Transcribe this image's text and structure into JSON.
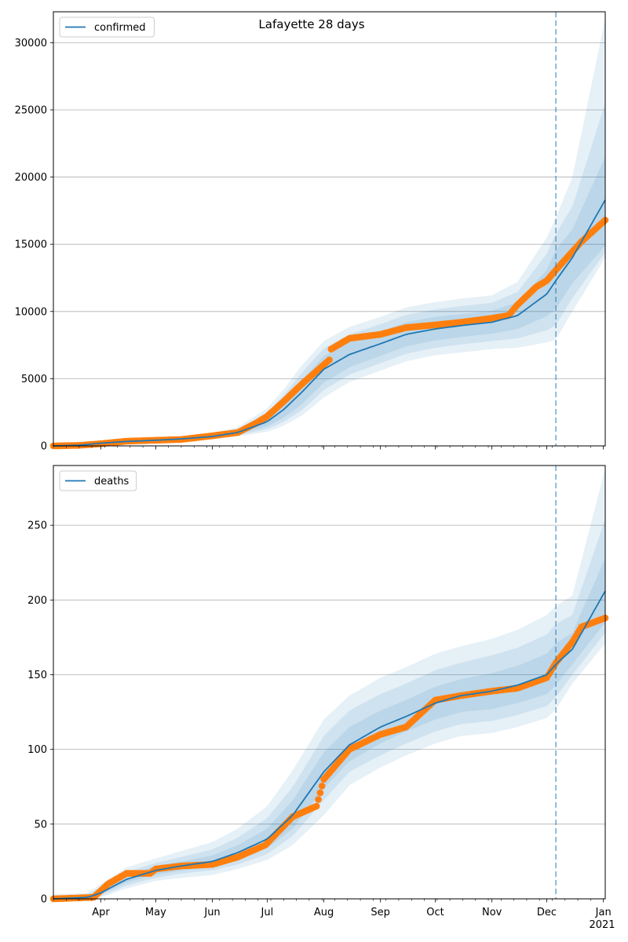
{
  "figure": {
    "suptitle": "Lafayette 28 days"
  },
  "colors": {
    "model_line": "#1f77b4",
    "observed_points": "#ff7f0e",
    "band": "#1f77b4",
    "cutoff_line": "#1f77b4",
    "grid": "#b0b0b0"
  },
  "x_axis": {
    "month_ticks": [
      {
        "date": "2020-04-01",
        "label": "Apr"
      },
      {
        "date": "2020-05-01",
        "label": "May"
      },
      {
        "date": "2020-06-01",
        "label": "Jun"
      },
      {
        "date": "2020-07-01",
        "label": "Jul"
      },
      {
        "date": "2020-08-01",
        "label": "Aug"
      },
      {
        "date": "2020-09-01",
        "label": "Sep"
      },
      {
        "date": "2020-10-01",
        "label": "Oct"
      },
      {
        "date": "2020-11-01",
        "label": "Nov"
      },
      {
        "date": "2020-12-01",
        "label": "Dec"
      },
      {
        "date": "2021-01-01",
        "label": "Jan"
      }
    ],
    "year_label": "2021",
    "range": [
      "2020-03-06",
      "2021-01-02"
    ]
  },
  "chart_data": [
    {
      "type": "line",
      "legend": "confirmed",
      "legend_position": "top-left",
      "grid": "y",
      "ylim": [
        0,
        32300
      ],
      "yticks": [
        "0",
        "5000",
        "10000",
        "15000",
        "20000",
        "25000",
        "30000"
      ],
      "ytick_values": [
        0,
        5000,
        10000,
        15000,
        20000,
        25000,
        30000
      ],
      "forecast_start": "2020-12-06",
      "model": {
        "name": "confirmed",
        "dates": [
          "2020-03-06",
          "2020-03-20",
          "2020-04-01",
          "2020-04-15",
          "2020-05-01",
          "2020-05-15",
          "2020-06-01",
          "2020-06-15",
          "2020-07-01",
          "2020-07-10",
          "2020-07-20",
          "2020-08-01",
          "2020-08-15",
          "2020-09-01",
          "2020-09-15",
          "2020-10-01",
          "2020-10-15",
          "2020-11-01",
          "2020-11-15",
          "2020-12-01",
          "2020-12-06",
          "2020-12-15",
          "2021-01-02"
        ],
        "values": [
          0,
          50,
          200,
          330,
          420,
          520,
          700,
          1000,
          1800,
          2700,
          4000,
          5700,
          6800,
          7600,
          8300,
          8700,
          8950,
          9200,
          9700,
          11300,
          12300,
          14000,
          18300
        ],
        "bands": [
          {
            "lower": [
              0,
              40,
              170,
              290,
              380,
              470,
              630,
              880,
              1450,
              2100,
              3100,
              4700,
              5850,
              6700,
              7400,
              7850,
              8100,
              8350,
              8700,
              9650,
              10200,
              12100,
              14900
            ],
            "upper": [
              0,
              60,
              230,
              370,
              460,
              570,
              780,
              1120,
              2200,
              3300,
              4900,
              6700,
              7750,
              8500,
              9200,
              9600,
              9800,
              10050,
              10700,
              13100,
              14600,
              16100,
              21500
            ]
          },
          {
            "lower": [
              0,
              30,
              150,
              260,
              350,
              430,
              580,
              790,
              1250,
              1800,
              2650,
              4150,
              5300,
              6150,
              6850,
              7300,
              7550,
              7800,
              8000,
              8600,
              9000,
              11000,
              14400
            ],
            "upper": [
              0,
              70,
              260,
              410,
              500,
              620,
              850,
              1250,
              2500,
              3750,
              5450,
              7250,
              8300,
              9050,
              9750,
              10150,
              10400,
              10650,
              11450,
              14300,
              15800,
              17800,
              25500
            ]
          },
          {
            "lower": [
              0,
              20,
              130,
              230,
              320,
              390,
              520,
              700,
              1050,
              1500,
              2250,
              3600,
              4750,
              5600,
              6300,
              6750,
              6950,
              7200,
              7300,
              7700,
              7900,
              10000,
              14000
            ],
            "upper": [
              0,
              80,
              290,
              450,
              540,
              670,
              920,
              1400,
              2800,
              4200,
              6000,
              7800,
              8850,
              9600,
              10300,
              10700,
              10950,
              11200,
              12200,
              15500,
              17000,
              20000,
              31800
            ]
          }
        ]
      },
      "observed": {
        "dates": [
          "2020-03-06",
          "2020-03-20",
          "2020-03-31",
          "2020-04-15",
          "2020-05-01",
          "2020-05-15",
          "2020-06-01",
          "2020-06-15",
          "2020-06-25",
          "2020-07-01",
          "2020-07-10",
          "2020-07-20",
          "2020-07-30",
          "2020-08-04",
          "2020-08-05",
          "2020-08-15",
          "2020-09-01",
          "2020-09-15",
          "2020-10-01",
          "2020-10-15",
          "2020-11-01",
          "2020-11-10",
          "2020-11-15",
          "2020-11-25",
          "2020-12-01",
          "2020-12-10",
          "2020-12-20",
          "2021-01-02"
        ],
        "values": [
          0,
          40,
          150,
          350,
          420,
          480,
          750,
          1000,
          1700,
          2200,
          3300,
          4600,
          5800,
          6400,
          7200,
          8000,
          8300,
          8800,
          9000,
          9200,
          9500,
          9700,
          10500,
          11800,
          12300,
          13700,
          15200,
          16800
        ]
      }
    },
    {
      "type": "line",
      "legend": "deaths",
      "legend_position": "top-left",
      "grid": "y",
      "ylim": [
        0,
        290
      ],
      "yticks": [
        "0",
        "50",
        "100",
        "150",
        "200",
        "250"
      ],
      "ytick_values": [
        0,
        50,
        100,
        150,
        200,
        250
      ],
      "forecast_start": "2020-12-06",
      "model": {
        "name": "deaths",
        "dates": [
          "2020-03-06",
          "2020-03-25",
          "2020-04-01",
          "2020-04-15",
          "2020-05-01",
          "2020-05-15",
          "2020-06-01",
          "2020-06-15",
          "2020-07-01",
          "2020-07-15",
          "2020-08-01",
          "2020-08-15",
          "2020-09-01",
          "2020-09-15",
          "2020-10-01",
          "2020-10-15",
          "2020-11-01",
          "2020-11-15",
          "2020-12-01",
          "2020-12-06",
          "2020-12-15",
          "2021-01-02"
        ],
        "values": [
          0,
          1,
          4,
          13,
          19,
          22,
          25,
          31,
          40,
          56,
          85,
          103,
          115,
          122,
          131,
          136,
          139,
          143,
          150,
          157,
          167,
          206
        ],
        "bands": [
          {
            "lower": [
              0,
              0,
              3,
              11,
              16,
              19,
              21,
              26,
              34,
              47,
              74,
              92,
              104,
              112,
              120,
              125,
              127,
              131,
              137,
              143,
              157,
              185
            ],
            "upper": [
              1,
              2,
              6,
              16,
              22,
              25,
              29,
              36,
              47,
              66,
              98,
              115,
              126,
              133,
              142,
              147,
              151,
              156,
              164,
              171,
              178,
              228
            ]
          },
          {
            "lower": [
              0,
              0,
              2,
              9,
              14,
              17,
              19,
              23,
              30,
              42,
              66,
              85,
              96,
              104,
              112,
              117,
              119,
              123,
              129,
              135,
              150,
              178
            ],
            "upper": [
              2,
              3,
              8,
              18,
              24,
              28,
              33,
              41,
              54,
              75,
              109,
              126,
              137,
              144,
              153,
              158,
              163,
              168,
              177,
              184,
              190,
              254
            ]
          },
          {
            "lower": [
              0,
              0,
              1,
              7,
              12,
              14,
              16,
              20,
              26,
              36,
              56,
              76,
              88,
              96,
              104,
              109,
              111,
              115,
              121,
              127,
              144,
              171
            ],
            "upper": [
              3,
              4,
              10,
              21,
              27,
              32,
              38,
              47,
              62,
              86,
              120,
              136,
              148,
              155,
              164,
              169,
              174,
              180,
              190,
              196,
              203,
              288
            ]
          }
        ]
      },
      "observed": {
        "dates": [
          "2020-03-06",
          "2020-03-28",
          "2020-04-05",
          "2020-04-15",
          "2020-04-28",
          "2020-05-01",
          "2020-05-15",
          "2020-06-01",
          "2020-06-15",
          "2020-06-30",
          "2020-07-15",
          "2020-07-28",
          "2020-08-01",
          "2020-08-15",
          "2020-09-01",
          "2020-09-15",
          "2020-10-01",
          "2020-10-15",
          "2020-11-01",
          "2020-11-15",
          "2020-12-01",
          "2020-12-06",
          "2020-12-15",
          "2020-12-20",
          "2021-01-02"
        ],
        "values": [
          0,
          1,
          10,
          17,
          17,
          20,
          22,
          23,
          28,
          36,
          55,
          62,
          80,
          100,
          110,
          115,
          133,
          136,
          139,
          141,
          148,
          158,
          172,
          182,
          188
        ]
      }
    }
  ]
}
